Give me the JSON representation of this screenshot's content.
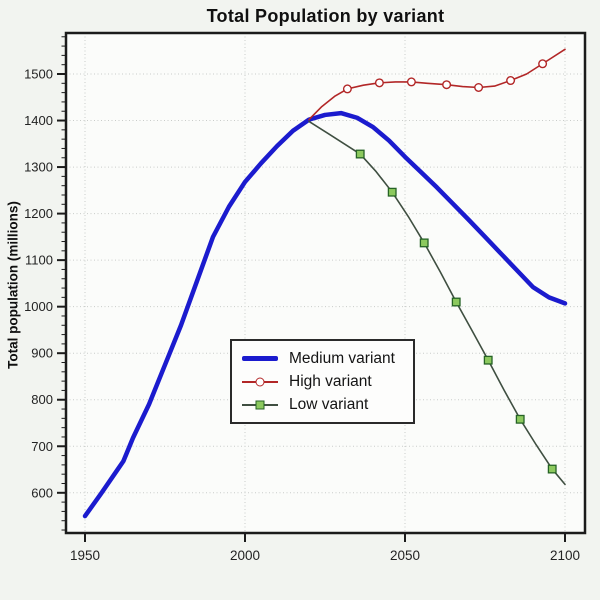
{
  "colors": {
    "page_bg": "#f2f4f0",
    "plot_bg": "#fbfcfa",
    "frame": "#1b1b1b",
    "grid": "#c9ccc9",
    "tick_text": "#232323",
    "medium_blue": "#1b1bce",
    "high_red": "#b22727",
    "low_green_line": "#3f4f41",
    "low_marker_fill": "#8cc95e",
    "low_marker_stroke": "#266326"
  },
  "chart_data": {
    "type": "line",
    "title": "Total Population by variant",
    "xlabel": "",
    "ylabel": "Total population (millions)",
    "x_ticks": [
      1950,
      2000,
      2050,
      2100
    ],
    "y_ticks": [
      600,
      700,
      800,
      900,
      1000,
      1100,
      1200,
      1300,
      1400,
      1500
    ],
    "y_minor": {
      "start": 520,
      "end": 1580,
      "step": 20
    },
    "xlim": [
      1944,
      2106
    ],
    "ylim": [
      514,
      1588
    ],
    "grid": true,
    "legend_position": "center",
    "series": [
      {
        "name": "Medium variant",
        "color": "#1b1bce",
        "width": 4.5,
        "marker": "none",
        "marker_indices": [],
        "x": [
          1950,
          1955,
          1960,
          1962,
          1965,
          1970,
          1975,
          1980,
          1985,
          1990,
          1995,
          2000,
          2005,
          2010,
          2015,
          2020,
          2025,
          2030,
          2035,
          2040,
          2045,
          2050,
          2055,
          2060,
          2065,
          2070,
          2075,
          2080,
          2085,
          2090,
          2095,
          2100
        ],
        "y": [
          550,
          598,
          648,
          668,
          718,
          790,
          875,
          960,
          1055,
          1150,
          1215,
          1268,
          1308,
          1345,
          1378,
          1402,
          1412,
          1416,
          1406,
          1386,
          1357,
          1322,
          1289,
          1256,
          1221,
          1186,
          1150,
          1114,
          1078,
          1042,
          1020,
          1007
        ]
      },
      {
        "name": "High variant",
        "color": "#b22727",
        "width": 1.6,
        "marker": "circle",
        "marker_fill": "#ffffff",
        "marker_indices": [
          3,
          5,
          7,
          9,
          11,
          13,
          15
        ],
        "x": [
          2020,
          2024,
          2028,
          2032,
          2037,
          2042,
          2047,
          2052,
          2057,
          2063,
          2068,
          2073,
          2078,
          2083,
          2088,
          2093,
          2100
        ],
        "y": [
          1402,
          1430,
          1452,
          1468,
          1476,
          1481,
          1483,
          1483,
          1480,
          1477,
          1473,
          1471,
          1474,
          1486,
          1500,
          1522,
          1553
        ]
      },
      {
        "name": "Low variant",
        "color": "#3f4f41",
        "width": 1.6,
        "marker": "square",
        "marker_fill": "#8cc95e",
        "marker_stroke": "#266326",
        "marker_indices": [
          3,
          5,
          7,
          9,
          11,
          13,
          15
        ],
        "x": [
          2020,
          2026,
          2031,
          2036,
          2041,
          2046,
          2051,
          2056,
          2061,
          2066,
          2071,
          2076,
          2081,
          2086,
          2091,
          2096,
          2100
        ],
        "y": [
          1398,
          1372,
          1350,
          1328,
          1290,
          1246,
          1194,
          1137,
          1075,
          1010,
          948,
          885,
          820,
          758,
          703,
          651,
          618
        ]
      }
    ]
  }
}
